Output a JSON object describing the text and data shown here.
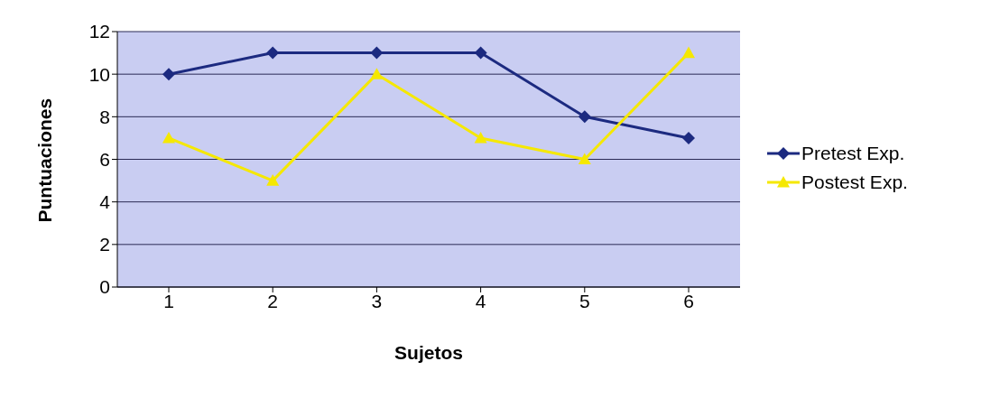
{
  "chart_data": {
    "type": "line",
    "xlabel": "Sujetos",
    "ylabel": "Puntuaciones",
    "categories": [
      "1",
      "2",
      "3",
      "4",
      "5",
      "6"
    ],
    "series": [
      {
        "name": "Pretest Exp.",
        "color": "#1c2a80",
        "marker": "diamond",
        "values": [
          10,
          11,
          11,
          11,
          8,
          7
        ]
      },
      {
        "name": "Postest Exp.",
        "color": "#f5e800",
        "marker": "triangle",
        "values": [
          7,
          5,
          10,
          7,
          6,
          11
        ]
      }
    ],
    "ylim": [
      0,
      12
    ],
    "yticks": [
      0,
      2,
      4,
      6,
      8,
      10,
      12
    ],
    "grid": "y",
    "legend": "right"
  }
}
